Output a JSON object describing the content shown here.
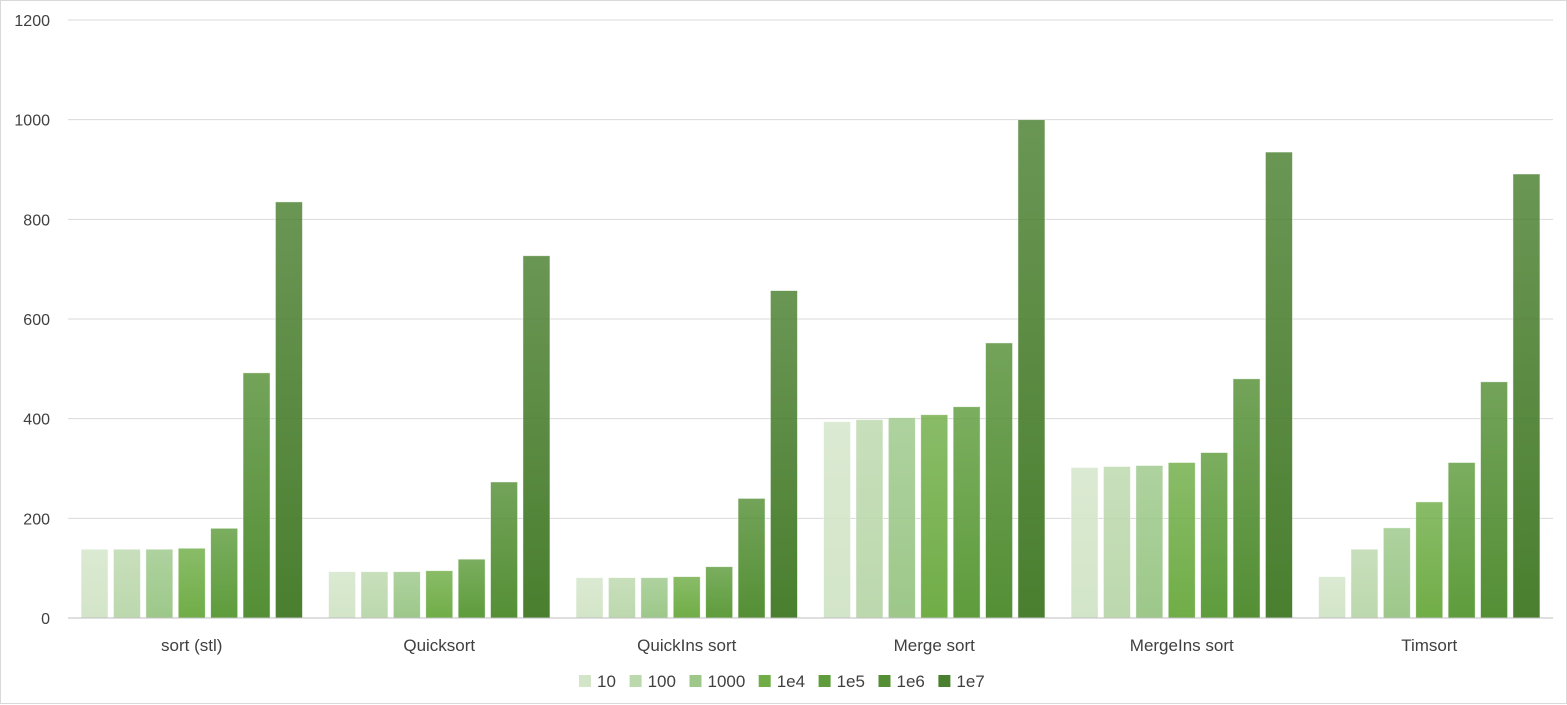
{
  "chart_data": {
    "type": "bar",
    "title": "",
    "xlabel": "",
    "ylabel": "",
    "ylim": [
      0,
      1200
    ],
    "yticks": [
      "0",
      "200",
      "400",
      "600",
      "800",
      "1000",
      "1200"
    ],
    "grid": "horizontal",
    "legend_position": "bottom",
    "categories": [
      "sort (stl)",
      "Quicksort",
      "QuickIns sort",
      "Merge sort",
      "MergeIns sort",
      "Timsort"
    ],
    "series": [
      {
        "name": "10",
        "color": "#d3e5c8",
        "values": [
          138,
          93,
          81,
          394,
          302,
          83
        ]
      },
      {
        "name": "100",
        "color": "#bcd8ad",
        "values": [
          138,
          93,
          81,
          398,
          304,
          138
        ]
      },
      {
        "name": "1000",
        "color": "#9dc88a",
        "values": [
          138,
          93,
          81,
          402,
          306,
          181
        ]
      },
      {
        "name": "1e4",
        "color": "#70ad47",
        "values": [
          140,
          95,
          83,
          408,
          312,
          233
        ]
      },
      {
        "name": "1e5",
        "color": "#5e9c3c",
        "values": [
          180,
          118,
          103,
          424,
          332,
          312
        ]
      },
      {
        "name": "1e6",
        "color": "#548f35",
        "values": [
          492,
          273,
          240,
          552,
          480,
          474
        ]
      },
      {
        "name": "1e7",
        "color": "#4a7f2f",
        "values": [
          835,
          727,
          657,
          1000,
          935,
          891
        ]
      }
    ]
  }
}
